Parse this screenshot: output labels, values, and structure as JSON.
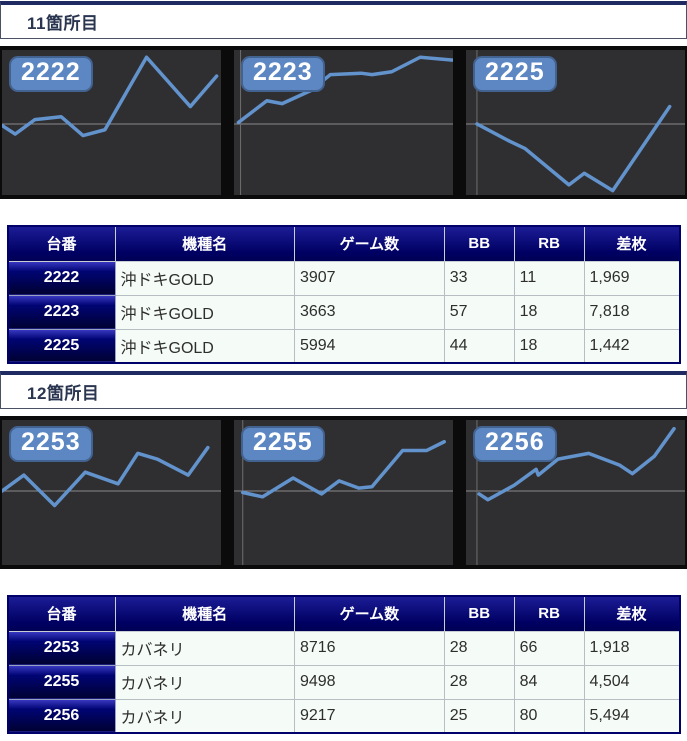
{
  "colors": {
    "chart_line": "#6293cc",
    "chart_zero_line": "#8a8a8a",
    "chart_axis_line": "#6f6f6f",
    "badge_background": "#5d87c2",
    "badge_text": "#ffffff",
    "panel_background": "#2f2f32",
    "strip_background": "#0b0b0b",
    "table_header_navy": "#000080",
    "heading_accent": "#1f2a63"
  },
  "sections": [
    {
      "heading": "11箇所目",
      "charts": [
        {
          "machine": "2222"
        },
        {
          "machine": "2223"
        },
        {
          "machine": "2225"
        }
      ],
      "table": {
        "headers": [
          "台番",
          "機種名",
          "ゲーム数",
          "BB",
          "RB",
          "差枚"
        ],
        "rows": [
          [
            "2222",
            "沖ドキGOLD",
            "3907",
            "33",
            "11",
            "1,969"
          ],
          [
            "2223",
            "沖ドキGOLD",
            "3663",
            "57",
            "18",
            "7,818"
          ],
          [
            "2225",
            "沖ドキGOLD",
            "5994",
            "44",
            "18",
            "1,442"
          ]
        ]
      }
    },
    {
      "heading": "12箇所目",
      "charts": [
        {
          "machine": "2253"
        },
        {
          "machine": "2255"
        },
        {
          "machine": "2256"
        }
      ],
      "table": {
        "headers": [
          "台番",
          "機種名",
          "ゲーム数",
          "BB",
          "RB",
          "差枚"
        ],
        "rows": [
          [
            "2253",
            "カバネリ",
            "8716",
            "28",
            "66",
            "1,918"
          ],
          [
            "2255",
            "カバネリ",
            "9498",
            "28",
            "84",
            "4,504"
          ],
          [
            "2256",
            "カバネリ",
            "9217",
            "25",
            "80",
            "5,494"
          ]
        ]
      }
    }
  ],
  "chart_data": [
    {
      "type": "line",
      "title": "2222",
      "units": "points are [x_percent, y_percent_from_top] inside panel; horizontal zero line shown; no axis tick labels visible",
      "zero_line_y_percent": 51,
      "axis_x_percent": null,
      "points": [
        [
          0,
          52
        ],
        [
          6,
          58
        ],
        [
          15,
          48
        ],
        [
          27,
          46
        ],
        [
          37,
          59
        ],
        [
          47,
          55
        ],
        [
          66,
          5
        ],
        [
          86,
          39
        ],
        [
          98,
          18
        ]
      ]
    },
    {
      "type": "line",
      "title": "2223",
      "zero_line_y_percent": 51,
      "axis_x_percent": 3,
      "points": [
        [
          2,
          50
        ],
        [
          15,
          35
        ],
        [
          22,
          37
        ],
        [
          35,
          28
        ],
        [
          44,
          17
        ],
        [
          58,
          16
        ],
        [
          63,
          17
        ],
        [
          72,
          15
        ],
        [
          85,
          5
        ],
        [
          100,
          7
        ]
      ]
    },
    {
      "type": "line",
      "title": "2225",
      "zero_line_y_percent": 51,
      "axis_x_percent": 5,
      "points": [
        [
          5,
          51
        ],
        [
          20,
          63
        ],
        [
          27,
          68
        ],
        [
          47,
          93
        ],
        [
          54,
          85
        ],
        [
          67,
          97
        ],
        [
          93,
          39
        ]
      ]
    },
    {
      "type": "line",
      "title": "2253",
      "zero_line_y_percent": 49,
      "axis_x_percent": null,
      "points": [
        [
          0,
          49
        ],
        [
          10,
          38
        ],
        [
          24,
          59
        ],
        [
          38,
          36
        ],
        [
          53,
          44
        ],
        [
          62,
          23
        ],
        [
          71,
          27
        ],
        [
          85,
          38
        ],
        [
          94,
          19
        ]
      ]
    },
    {
      "type": "line",
      "title": "2255",
      "zero_line_y_percent": 49,
      "axis_x_percent": 4,
      "points": [
        [
          4,
          50
        ],
        [
          13,
          53
        ],
        [
          27,
          40
        ],
        [
          40,
          51
        ],
        [
          48,
          42
        ],
        [
          57,
          47
        ],
        [
          63,
          46
        ],
        [
          77,
          21
        ],
        [
          88,
          21
        ],
        [
          96,
          15
        ]
      ]
    },
    {
      "type": "line",
      "title": "2256",
      "zero_line_y_percent": 49,
      "axis_x_percent": 5,
      "points": [
        [
          6,
          51
        ],
        [
          10,
          55
        ],
        [
          22,
          45
        ],
        [
          32,
          34
        ],
        [
          33,
          38
        ],
        [
          42,
          27
        ],
        [
          56,
          23
        ],
        [
          70,
          31
        ],
        [
          76,
          37
        ],
        [
          86,
          25
        ],
        [
          95,
          6
        ]
      ]
    }
  ]
}
